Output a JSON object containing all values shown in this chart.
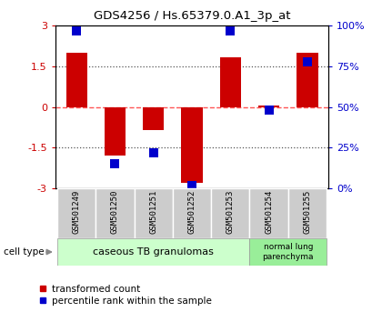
{
  "title": "GDS4256 / Hs.65379.0.A1_3p_at",
  "samples": [
    "GSM501249",
    "GSM501250",
    "GSM501251",
    "GSM501252",
    "GSM501253",
    "GSM501254",
    "GSM501255"
  ],
  "transformed_count": [
    2.0,
    -1.8,
    -0.85,
    -2.8,
    1.85,
    0.05,
    2.0
  ],
  "percentile_rank": [
    97,
    15,
    22,
    2,
    97,
    48,
    78
  ],
  "ylim_left": [
    -3,
    3
  ],
  "ylim_right": [
    0,
    100
  ],
  "yticks_left": [
    -3,
    -1.5,
    0,
    1.5,
    3
  ],
  "yticks_right": [
    0,
    25,
    50,
    75,
    100
  ],
  "bar_color": "#cc0000",
  "dot_color": "#0000cc",
  "zero_line_color": "#ff5555",
  "dotted_line_color": "#555555",
  "group1_label": "caseous TB granulomas",
  "group2_label": "normal lung\nparenchyma",
  "group1_color": "#ccffcc",
  "group2_color": "#99ee99",
  "tick_bg_color": "#cccccc",
  "legend_red_label": "transformed count",
  "legend_blue_label": "percentile rank within the sample",
  "cell_type_label": "cell type",
  "bar_width": 0.55,
  "dot_size": 55
}
